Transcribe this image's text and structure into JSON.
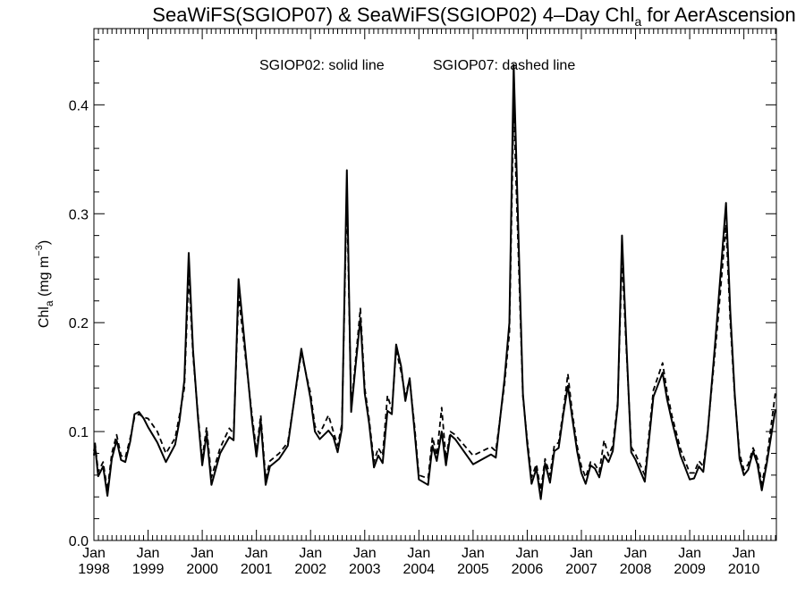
{
  "chart_data": {
    "type": "line",
    "title": "SeaWiFS(SGIOP07) & SeaWiFS(SGIOP02) 4–Day Chl",
    "title_sub": "a",
    "title_tail": " for AerAscension",
    "annotation_solid": "SGIOP02: solid line",
    "annotation_dashed": "SGIOP07: dashed line",
    "ylabel_main": "Chl",
    "ylabel_sub": "a",
    "ylabel_units": " (mg m",
    "ylabel_sup": "−3",
    "ylabel_close": ")",
    "xlim": [
      1998.0,
      2010.6
    ],
    "ylim": [
      0.0,
      0.47
    ],
    "yticks": [
      "0.0",
      "0.1",
      "0.2",
      "0.3",
      "0.4"
    ],
    "xticks": [
      {
        "x": 1998.0,
        "month": "Jan",
        "year": "1998"
      },
      {
        "x": 1999.0,
        "month": "Jan",
        "year": "1999"
      },
      {
        "x": 2000.0,
        "month": "Jan",
        "year": "2000"
      },
      {
        "x": 2001.0,
        "month": "Jan",
        "year": "2001"
      },
      {
        "x": 2002.0,
        "month": "Jan",
        "year": "2002"
      },
      {
        "x": 2003.0,
        "month": "Jan",
        "year": "2003"
      },
      {
        "x": 2004.0,
        "month": "Jan",
        "year": "2004"
      },
      {
        "x": 2005.0,
        "month": "Jan",
        "year": "2005"
      },
      {
        "x": 2006.0,
        "month": "Jan",
        "year": "2006"
      },
      {
        "x": 2007.0,
        "month": "Jan",
        "year": "2007"
      },
      {
        "x": 2008.0,
        "month": "Jan",
        "year": "2008"
      },
      {
        "x": 2009.0,
        "month": "Jan",
        "year": "2009"
      },
      {
        "x": 2010.0,
        "month": "Jan",
        "year": "2010"
      }
    ],
    "grid": false,
    "series": [
      {
        "name": "SGIOP02",
        "style": "solid",
        "x": [
          1997.9,
          1998.02,
          1998.08,
          1998.17,
          1998.25,
          1998.33,
          1998.42,
          1998.5,
          1998.58,
          1998.67,
          1998.75,
          1998.83,
          1998.92,
          1999.0,
          1999.17,
          1999.33,
          1999.5,
          1999.58,
          1999.67,
          1999.75,
          1999.83,
          1999.92,
          2000.0,
          2000.08,
          2000.17,
          2000.33,
          2000.5,
          2000.58,
          2000.67,
          2000.92,
          2001.0,
          2001.08,
          2001.17,
          2001.25,
          2001.42,
          2001.58,
          2001.83,
          2002.0,
          2002.08,
          2002.17,
          2002.33,
          2002.42,
          2002.5,
          2002.58,
          2002.67,
          2002.75,
          2002.83,
          2002.92,
          2003.0,
          2003.08,
          2003.17,
          2003.25,
          2003.33,
          2003.42,
          2003.5,
          2003.58,
          2003.67,
          2003.75,
          2003.83,
          2003.92,
          2004.0,
          2004.17,
          2004.25,
          2004.33,
          2004.42,
          2004.5,
          2004.58,
          2004.67,
          2005.0,
          2005.33,
          2005.42,
          2005.58,
          2005.67,
          2005.75,
          2005.92,
          2006.0,
          2006.08,
          2006.17,
          2006.25,
          2006.33,
          2006.42,
          2006.5,
          2006.58,
          2006.67,
          2006.75,
          2006.83,
          2006.92,
          2007.0,
          2007.08,
          2007.17,
          2007.25,
          2007.33,
          2007.42,
          2007.5,
          2007.58,
          2007.67,
          2007.75,
          2007.83,
          2007.92,
          2008.0,
          2008.17,
          2008.33,
          2008.5,
          2008.58,
          2008.67,
          2008.83,
          2009.0,
          2009.08,
          2009.17,
          2009.25,
          2009.33,
          2009.5,
          2009.67,
          2009.75,
          2009.83,
          2009.92,
          2010.0,
          2010.08,
          2010.17,
          2010.25,
          2010.33,
          2010.42,
          2010.58
        ],
        "y": [
          0.078,
          0.087,
          0.059,
          0.068,
          0.041,
          0.075,
          0.092,
          0.074,
          0.072,
          0.091,
          0.116,
          0.118,
          0.112,
          0.104,
          0.09,
          0.072,
          0.088,
          0.11,
          0.147,
          0.264,
          0.175,
          0.113,
          0.069,
          0.098,
          0.051,
          0.08,
          0.095,
          0.092,
          0.24,
          0.11,
          0.077,
          0.11,
          0.051,
          0.068,
          0.075,
          0.087,
          0.176,
          0.13,
          0.1,
          0.093,
          0.101,
          0.095,
          0.081,
          0.103,
          0.34,
          0.118,
          0.16,
          0.204,
          0.135,
          0.108,
          0.067,
          0.078,
          0.071,
          0.119,
          0.116,
          0.18,
          0.16,
          0.128,
          0.149,
          0.1,
          0.056,
          0.051,
          0.087,
          0.073,
          0.1,
          0.069,
          0.097,
          0.093,
          0.07,
          0.079,
          0.076,
          0.148,
          0.2,
          0.437,
          0.135,
          0.089,
          0.052,
          0.066,
          0.038,
          0.071,
          0.053,
          0.082,
          0.085,
          0.117,
          0.142,
          0.113,
          0.082,
          0.062,
          0.052,
          0.069,
          0.066,
          0.058,
          0.078,
          0.072,
          0.082,
          0.124,
          0.28,
          0.181,
          0.081,
          0.074,
          0.054,
          0.132,
          0.154,
          0.13,
          0.11,
          0.078,
          0.056,
          0.057,
          0.068,
          0.063,
          0.098,
          0.2,
          0.31,
          0.21,
          0.135,
          0.075,
          0.06,
          0.065,
          0.082,
          0.07,
          0.046,
          0.07,
          0.12
        ]
      },
      {
        "name": "SGIOP07",
        "style": "dashed",
        "x": [
          1997.9,
          1998.02,
          1998.08,
          1998.17,
          1998.25,
          1998.33,
          1998.42,
          1998.5,
          1998.58,
          1998.67,
          1998.75,
          1998.83,
          1998.92,
          1999.0,
          1999.17,
          1999.33,
          1999.5,
          1999.58,
          1999.67,
          1999.75,
          1999.83,
          1999.92,
          2000.0,
          2000.08,
          2000.17,
          2000.33,
          2000.5,
          2000.58,
          2000.67,
          2000.92,
          2001.0,
          2001.08,
          2001.17,
          2001.25,
          2001.42,
          2001.58,
          2001.83,
          2002.0,
          2002.08,
          2002.17,
          2002.33,
          2002.42,
          2002.5,
          2002.58,
          2002.67,
          2002.75,
          2002.83,
          2002.92,
          2003.0,
          2003.08,
          2003.17,
          2003.25,
          2003.33,
          2003.42,
          2003.5,
          2003.58,
          2003.67,
          2003.75,
          2003.83,
          2003.92,
          2004.0,
          2004.17,
          2004.25,
          2004.33,
          2004.42,
          2004.5,
          2004.58,
          2004.67,
          2005.0,
          2005.33,
          2005.42,
          2005.58,
          2005.67,
          2005.75,
          2005.92,
          2006.0,
          2006.08,
          2006.17,
          2006.25,
          2006.33,
          2006.42,
          2006.5,
          2006.58,
          2006.67,
          2006.75,
          2006.83,
          2006.92,
          2007.0,
          2007.08,
          2007.17,
          2007.25,
          2007.33,
          2007.42,
          2007.5,
          2007.58,
          2007.67,
          2007.75,
          2007.83,
          2007.92,
          2008.0,
          2008.17,
          2008.33,
          2008.5,
          2008.58,
          2008.67,
          2008.83,
          2009.0,
          2009.08,
          2009.17,
          2009.25,
          2009.33,
          2009.5,
          2009.67,
          2009.75,
          2009.83,
          2009.92,
          2010.0,
          2010.08,
          2010.17,
          2010.25,
          2010.33,
          2010.42,
          2010.58
        ],
        "y": [
          0.082,
          0.09,
          0.063,
          0.072,
          0.046,
          0.08,
          0.097,
          0.078,
          0.076,
          0.094,
          0.113,
          0.116,
          0.113,
          0.112,
          0.1,
          0.08,
          0.094,
          0.115,
          0.14,
          0.245,
          0.17,
          0.116,
          0.075,
          0.104,
          0.058,
          0.085,
          0.103,
          0.098,
          0.225,
          0.115,
          0.082,
          0.115,
          0.057,
          0.073,
          0.08,
          0.09,
          0.172,
          0.135,
          0.105,
          0.098,
          0.115,
          0.1,
          0.087,
          0.107,
          0.32,
          0.122,
          0.165,
          0.213,
          0.14,
          0.112,
          0.072,
          0.085,
          0.078,
          0.133,
          0.12,
          0.175,
          0.155,
          0.133,
          0.148,
          0.105,
          0.06,
          0.057,
          0.095,
          0.078,
          0.122,
          0.075,
          0.1,
          0.097,
          0.078,
          0.086,
          0.082,
          0.143,
          0.19,
          0.4,
          0.132,
          0.093,
          0.058,
          0.07,
          0.046,
          0.075,
          0.06,
          0.087,
          0.09,
          0.12,
          0.153,
          0.118,
          0.087,
          0.068,
          0.058,
          0.072,
          0.07,
          0.063,
          0.092,
          0.078,
          0.087,
          0.127,
          0.26,
          0.175,
          0.086,
          0.079,
          0.06,
          0.138,
          0.163,
          0.137,
          0.115,
          0.084,
          0.062,
          0.062,
          0.073,
          0.068,
          0.1,
          0.19,
          0.29,
          0.2,
          0.132,
          0.08,
          0.065,
          0.07,
          0.085,
          0.075,
          0.052,
          0.074,
          0.135
        ]
      }
    ]
  }
}
